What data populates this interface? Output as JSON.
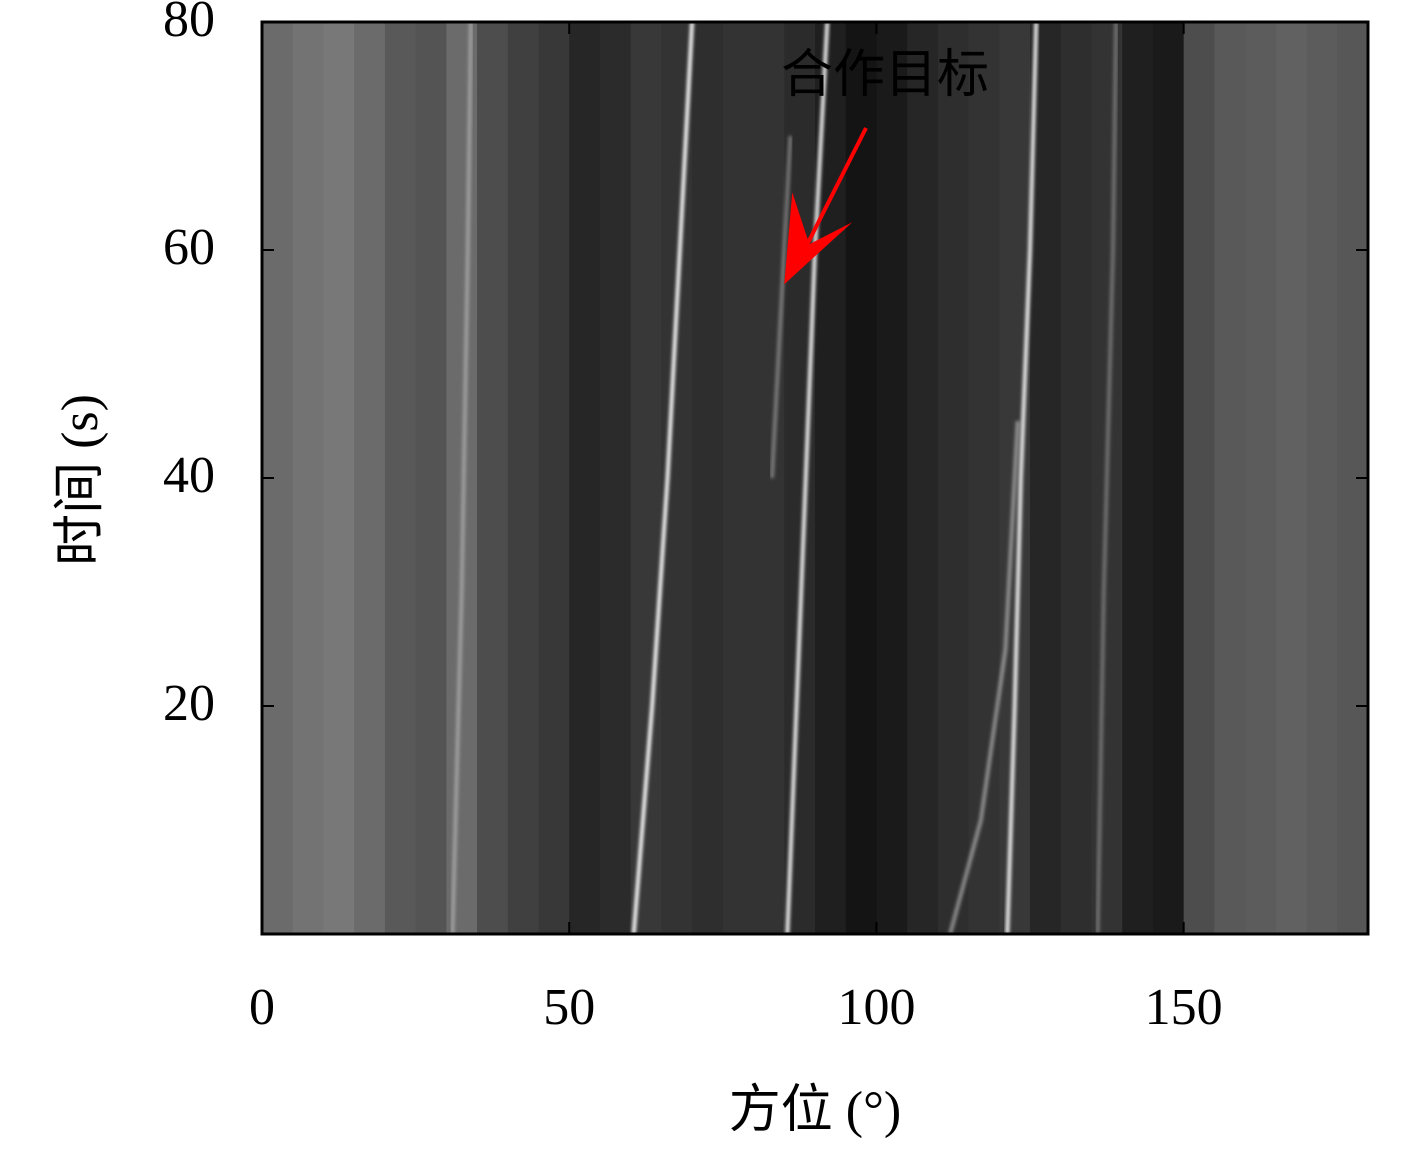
{
  "chart_data": {
    "type": "btr",
    "xlabel": "方位 (°)",
    "ylabel": "时间 (s)",
    "xlim": [
      0,
      180
    ],
    "ylim": [
      0,
      80
    ],
    "xticks": [
      0,
      50,
      100,
      150
    ],
    "yticks": [
      20,
      40,
      60,
      80
    ],
    "intensity_bins": [
      0,
      5,
      10,
      15,
      20,
      25,
      30,
      35,
      40,
      45,
      50,
      55,
      60,
      65,
      70,
      75,
      80,
      85,
      90,
      95,
      100,
      105,
      110,
      115,
      120,
      125,
      130,
      135,
      140,
      145,
      150,
      155,
      160,
      165,
      170,
      175,
      180
    ],
    "intensity": [
      0.42,
      0.45,
      0.47,
      0.42,
      0.35,
      0.33,
      0.42,
      0.3,
      0.25,
      0.22,
      0.15,
      0.17,
      0.22,
      0.2,
      0.18,
      0.2,
      0.2,
      0.17,
      0.12,
      0.08,
      0.1,
      0.15,
      0.18,
      0.2,
      0.22,
      0.15,
      0.18,
      0.2,
      0.12,
      0.1,
      0.3,
      0.35,
      0.36,
      0.38,
      0.36,
      0.34
    ],
    "track_color": "#ffffff",
    "tracks": [
      {
        "x": [
          60.5,
          63.5,
          66,
          68,
          70
        ],
        "y": [
          0,
          20,
          40,
          60,
          80
        ],
        "opacity": 0.95
      },
      {
        "x": [
          85.5,
          87,
          88.5,
          90,
          92
        ],
        "y": [
          0,
          20,
          40,
          60,
          80
        ],
        "opacity": 0.9
      },
      {
        "x": [
          121.3,
          122.5,
          123.5,
          125,
          126
        ],
        "y": [
          0,
          20,
          40,
          60,
          80
        ],
        "opacity": 0.9
      },
      {
        "x": [
          112,
          117,
          121,
          123
        ],
        "y": [
          0,
          10,
          25,
          45
        ],
        "opacity": 0.45
      },
      {
        "x": [
          83,
          84,
          85,
          86
        ],
        "y": [
          40,
          50,
          60,
          70
        ],
        "opacity": 0.35
      },
      {
        "x": [
          31,
          32.5,
          33.5,
          34
        ],
        "y": [
          0,
          30,
          60,
          80
        ],
        "opacity": 0.35
      },
      {
        "x": [
          136,
          137,
          138.5,
          139
        ],
        "y": [
          0,
          30,
          60,
          80
        ],
        "opacity": 0.3
      }
    ],
    "annotation": {
      "text": "合作目标",
      "xy": [
        85,
        57
      ],
      "color": "#ff0000"
    }
  }
}
